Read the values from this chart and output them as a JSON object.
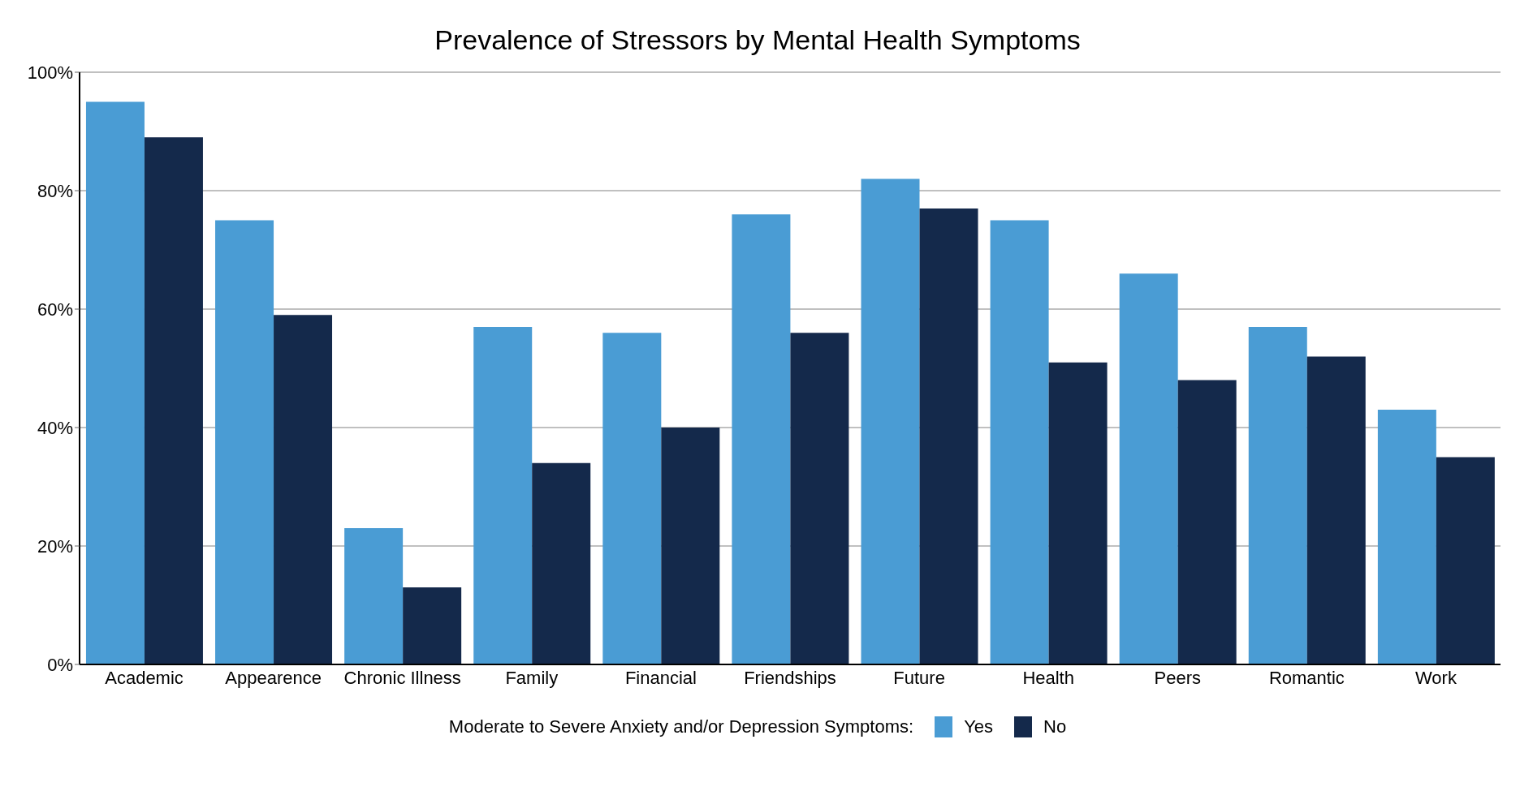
{
  "chart_data": {
    "type": "bar",
    "title": "Prevalence of Stressors by Mental Health Symptoms",
    "categories": [
      "Academic",
      "Appearence",
      "Chronic Illness",
      "Family",
      "Financial",
      "Friendships",
      "Future",
      "Health",
      "Peers",
      "Romantic",
      "Work"
    ],
    "series": [
      {
        "name": "Yes",
        "color": "#4a9cd4",
        "values": [
          95,
          75,
          23,
          57,
          56,
          76,
          82,
          75,
          66,
          57,
          43
        ]
      },
      {
        "name": "No",
        "color": "#14294b",
        "values": [
          89,
          59,
          13,
          34,
          40,
          56,
          77,
          51,
          48,
          52,
          35
        ]
      }
    ],
    "ylim": [
      0,
      100
    ],
    "yticks": [
      {
        "value": 0,
        "label": "0%"
      },
      {
        "value": 20,
        "label": "20%"
      },
      {
        "value": 40,
        "label": "40%"
      },
      {
        "value": 60,
        "label": "60%"
      },
      {
        "value": 80,
        "label": "80%"
      },
      {
        "value": 100,
        "label": "100%"
      }
    ],
    "grid": "y",
    "legend": "bottom",
    "legend_title": "Moderate to Severe Anxiety and/or Depression Symptoms:"
  }
}
